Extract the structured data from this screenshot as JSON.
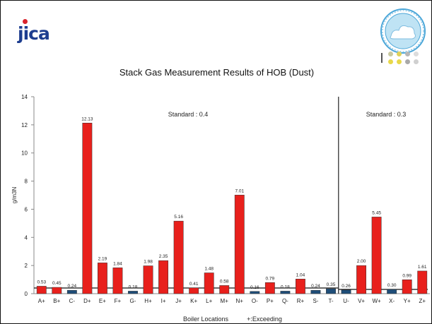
{
  "header": {
    "jica_logo_text": "jica"
  },
  "colors": {
    "exceeding": "#e8201c",
    "within": "#1f4e79",
    "standard_line": "#111111"
  },
  "chart_data": {
    "type": "bar",
    "title": "Stack Gas Measurement Results of HOB (Dust)",
    "ylabel": "g/m3N",
    "xlabel": "Boiler Locations",
    "legend_note": "+:Exceeding",
    "ylim": [
      0,
      14
    ],
    "yticks": [
      "0",
      "2",
      "4",
      "6",
      "8",
      "10",
      "12",
      "14"
    ],
    "categories": [
      "A+",
      "B+",
      "C-",
      "D+",
      "E+",
      "F+",
      "G-",
      "H+",
      "I+",
      "J+",
      "K+",
      "L+",
      "M+",
      "N+",
      "O-",
      "P+",
      "Q-",
      "R+",
      "S-",
      "T-",
      "U-",
      "V+",
      "W+",
      "X-",
      "Y+",
      "Z+"
    ],
    "values": [
      0.53,
      0.45,
      0.24,
      12.13,
      2.19,
      1.84,
      0.18,
      1.98,
      2.35,
      5.16,
      0.41,
      1.48,
      0.58,
      7.01,
      0.16,
      0.79,
      0.18,
      1.04,
      0.24,
      0.35,
      0.26,
      2.0,
      5.45,
      0.3,
      0.99,
      1.61
    ],
    "value_labels": [
      "0.53",
      "0.45",
      "0.24",
      "12.13",
      "2.19",
      "1.84",
      "0.18",
      "1.98",
      "2.35",
      "5.16",
      "0.41",
      "1.48",
      "0.58",
      "7.01",
      "0.16",
      "0.79",
      "0.18",
      "1.04",
      "0.24",
      "0.35",
      "0.26",
      "2.00",
      "5.45",
      "0.30",
      "0.99",
      "1.61"
    ],
    "exceeding": [
      true,
      true,
      false,
      true,
      true,
      true,
      false,
      true,
      true,
      true,
      true,
      true,
      true,
      true,
      false,
      true,
      false,
      true,
      false,
      false,
      false,
      true,
      true,
      false,
      true,
      true
    ],
    "standards": [
      {
        "label": "Standard : 0.4",
        "value": 0.4,
        "from": "A+",
        "to": "T-"
      },
      {
        "label": "Standard : 0.3",
        "value": 0.3,
        "from": "U-",
        "to": "Z+"
      }
    ],
    "grid": false
  }
}
